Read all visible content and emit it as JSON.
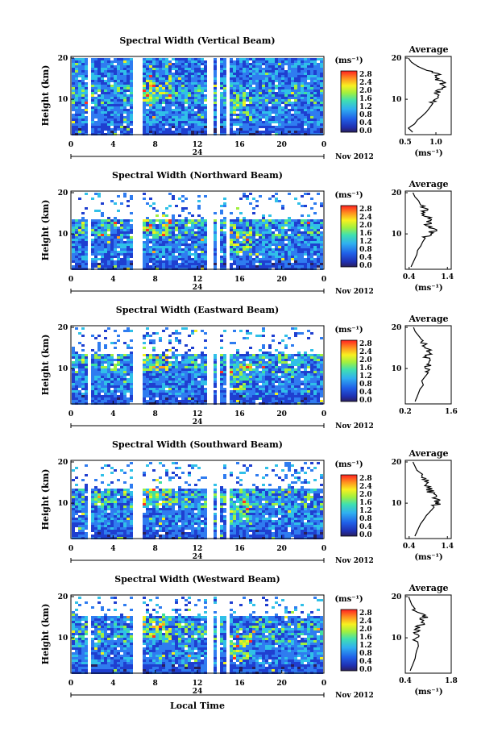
{
  "chart_data": [
    {
      "type": "heatmap",
      "title": "Spectral Width (Vertical Beam)",
      "ylabel": "Height (km)",
      "yticks": [
        "20",
        "10"
      ],
      "xticks": [
        "0",
        "4",
        "8",
        "12",
        "16",
        "20",
        "0"
      ],
      "date_label": "24",
      "month_label": "Nov 2012",
      "colorbar_unit": "(ms⁻¹)",
      "colorbar_ticks": [
        "2.8",
        "2.4",
        "2.0",
        "1.6",
        "1.2",
        "0.8",
        "0.4",
        "0.0"
      ],
      "profile_title": "Average",
      "profile_xticks": [
        "0.5",
        "1.0"
      ],
      "profile_yticks": [
        "20",
        "10"
      ],
      "profile_xlabel": "(ms⁻¹)",
      "profile_xlim": [
        0.5,
        1.25
      ],
      "gaps_hours": [
        [
          1.4,
          1.9
        ],
        [
          5.8,
          6.6
        ],
        [
          12.8,
          13.3
        ],
        [
          13.7,
          14.0
        ],
        [
          14.7,
          15.0
        ],
        [
          17.6,
          17.8
        ]
      ],
      "profile": {
        "height_km": [
          2,
          3,
          4,
          5,
          6,
          7,
          8,
          9,
          10,
          11,
          12,
          13,
          14,
          15,
          16,
          17,
          18,
          19,
          20
        ],
        "width_ms": [
          0.62,
          0.55,
          0.65,
          0.7,
          0.78,
          0.85,
          0.9,
          0.95,
          0.98,
          1.02,
          1.05,
          1.12,
          1.1,
          0.98,
          1.05,
          0.85,
          0.7,
          0.6,
          0.55
        ]
      }
    },
    {
      "type": "heatmap",
      "title": "Spectral Width (Northward Beam)",
      "ylabel": "Height (km)",
      "yticks": [
        "20",
        "10"
      ],
      "xticks": [
        "0",
        "4",
        "8",
        "12",
        "16",
        "20",
        "0"
      ],
      "date_label": "24",
      "month_label": "Nov 2012",
      "colorbar_unit": "(ms⁻¹)",
      "colorbar_ticks": [
        "2.8",
        "2.4",
        "2.0",
        "1.6",
        "1.2",
        "0.8",
        "0.4",
        "0.0"
      ],
      "profile_title": "Average",
      "profile_xticks": [
        "0.4",
        "1.4"
      ],
      "profile_yticks": [
        "20",
        "10"
      ],
      "profile_xlabel": "(ms⁻¹)",
      "profile_xlim": [
        0.3,
        1.5
      ],
      "gaps_hours": [
        [
          1.4,
          1.9
        ],
        [
          5.8,
          6.6
        ],
        [
          12.8,
          13.3
        ],
        [
          13.7,
          14.0
        ],
        [
          14.7,
          15.0
        ],
        [
          17.6,
          17.8
        ]
      ],
      "profile": {
        "height_km": [
          2,
          3,
          4,
          5,
          6,
          7,
          8,
          9,
          10,
          11,
          12,
          13,
          14,
          15,
          16,
          17,
          18,
          19,
          20
        ],
        "width_ms": [
          0.45,
          0.5,
          0.55,
          0.6,
          0.62,
          0.7,
          0.75,
          0.82,
          0.9,
          1.05,
          0.85,
          0.95,
          0.9,
          0.8,
          0.85,
          0.7,
          0.65,
          0.55,
          0.5
        ]
      }
    },
    {
      "type": "heatmap",
      "title": "Spectral Width (Eastward Beam)",
      "ylabel": "Height (km)",
      "yticks": [
        "20",
        "10"
      ],
      "xticks": [
        "0",
        "4",
        "8",
        "12",
        "16",
        "20",
        "0"
      ],
      "date_label": "24",
      "month_label": "Nov 2012",
      "colorbar_unit": "(ms⁻¹)",
      "colorbar_ticks": [
        "2.8",
        "2.4",
        "2.0",
        "1.6",
        "1.2",
        "0.8",
        "0.4",
        "0.0"
      ],
      "profile_title": "Average",
      "profile_xticks": [
        "0.2",
        "1.6"
      ],
      "profile_yticks": [
        "20",
        "10"
      ],
      "profile_xlabel": "",
      "profile_xlim": [
        0.2,
        1.6
      ],
      "gaps_hours": [
        [
          1.4,
          1.9
        ],
        [
          5.8,
          6.6
        ],
        [
          12.8,
          13.3
        ],
        [
          13.7,
          14.0
        ],
        [
          14.7,
          15.0
        ],
        [
          17.6,
          17.8
        ]
      ],
      "profile": {
        "height_km": [
          2,
          3,
          4,
          5,
          6,
          7,
          8,
          9,
          10,
          11,
          12,
          13,
          14,
          15,
          16,
          17,
          18,
          19,
          20
        ],
        "width_ms": [
          0.5,
          0.55,
          0.6,
          0.65,
          0.75,
          0.7,
          0.8,
          0.9,
          0.85,
          0.95,
          0.9,
          0.85,
          0.95,
          0.9,
          0.8,
          0.7,
          0.6,
          0.5,
          0.45
        ]
      }
    },
    {
      "type": "heatmap",
      "title": "Spectral Width (Southward Beam)",
      "ylabel": "Height (km)",
      "yticks": [
        "20",
        "10"
      ],
      "xticks": [
        "0",
        "4",
        "8",
        "12",
        "16",
        "20",
        "0"
      ],
      "date_label": "24",
      "month_label": "Nov 2012",
      "colorbar_unit": "(ms⁻¹)",
      "colorbar_ticks": [
        "2.8",
        "2.4",
        "2.0",
        "1.6",
        "1.2",
        "0.8",
        "0.4",
        "0.0"
      ],
      "profile_title": "Average",
      "profile_xticks": [
        "0.4",
        "1.4"
      ],
      "profile_yticks": [
        "20",
        "10"
      ],
      "profile_xlabel": "(ms⁻¹)",
      "profile_xlim": [
        0.3,
        1.5
      ],
      "gaps_hours": [
        [
          1.4,
          1.9
        ],
        [
          5.8,
          6.6
        ],
        [
          12.8,
          13.3
        ],
        [
          13.7,
          14.0
        ],
        [
          14.7,
          15.0
        ],
        [
          17.6,
          17.8
        ]
      ],
      "profile": {
        "height_km": [
          2,
          3,
          4,
          5,
          6,
          7,
          8,
          9,
          10,
          11,
          12,
          13,
          14,
          15,
          16,
          17,
          18,
          19,
          20
        ],
        "width_ms": [
          0.55,
          0.6,
          0.65,
          0.7,
          0.78,
          0.85,
          0.95,
          1.05,
          1.15,
          1.1,
          1.0,
          0.95,
          0.85,
          0.9,
          0.8,
          0.75,
          0.6,
          0.55,
          0.5
        ]
      }
    },
    {
      "type": "heatmap",
      "title": "Spectral Width (Westward Beam)",
      "ylabel": "Height (km)",
      "yticks": [
        "20",
        "10"
      ],
      "xticks": [
        "0",
        "4",
        "8",
        "12",
        "16",
        "20",
        "0"
      ],
      "date_label": "24",
      "month_label": "Nov 2012",
      "colorbar_unit": "(ms⁻¹)",
      "colorbar_ticks": [
        "2.8",
        "2.4",
        "2.0",
        "1.6",
        "1.2",
        "0.8",
        "0.4",
        "0.0"
      ],
      "profile_title": "Average",
      "profile_xticks": [
        "0.4",
        "1.8"
      ],
      "profile_yticks": [
        "20",
        "10"
      ],
      "profile_xlabel": "(ms⁻¹)",
      "profile_xlim": [
        0.4,
        1.8
      ],
      "gaps_hours": [
        [
          1.4,
          1.9
        ],
        [
          5.8,
          6.6
        ],
        [
          12.8,
          13.3
        ],
        [
          13.7,
          14.0
        ],
        [
          14.7,
          15.0
        ],
        [
          17.6,
          17.8
        ]
      ],
      "profile": {
        "height_km": [
          2,
          3,
          4,
          5,
          6,
          7,
          8,
          9,
          10,
          11,
          12,
          13,
          14,
          15,
          16,
          17,
          18,
          19,
          20
        ],
        "width_ms": [
          0.55,
          0.6,
          0.65,
          0.7,
          0.72,
          0.75,
          0.8,
          0.78,
          0.7,
          0.75,
          0.8,
          0.85,
          0.9,
          1.0,
          0.85,
          0.7,
          0.6,
          0.55,
          0.5
        ]
      }
    }
  ],
  "x_axis_label": "Local Time",
  "colors": {
    "colorscale": [
      "#2a1f5c",
      "#1f3fd0",
      "#2f7cf0",
      "#30c0e8",
      "#40e0a0",
      "#a0f040",
      "#f0f020",
      "#ffa020",
      "#ff3020"
    ]
  }
}
